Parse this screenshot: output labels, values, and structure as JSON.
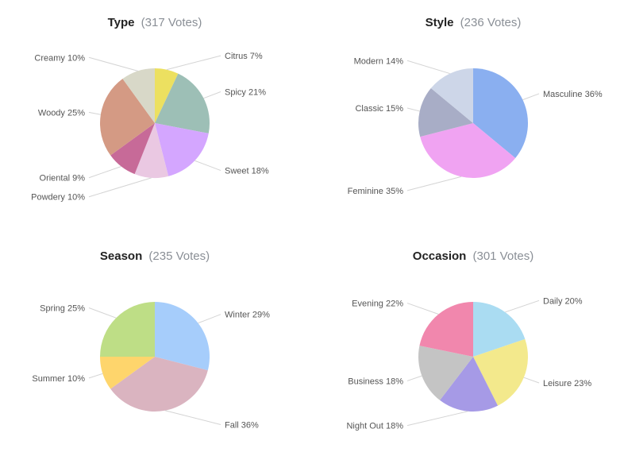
{
  "chart_data": [
    {
      "type": "pie",
      "title": "Type",
      "subtitle": "(317 Votes)",
      "labels": [
        "Citrus",
        "Spicy",
        "Sweet",
        "Powdery",
        "Oriental",
        "Woody",
        "Creamy"
      ],
      "values": [
        7,
        21,
        18,
        10,
        9,
        25,
        10
      ],
      "value_labels": [
        "Citrus 7%",
        "Spicy 21%",
        "Sweet 18%",
        "Powdery 10%",
        "Oriental 9%",
        "Woody 25%",
        "Creamy 10%"
      ],
      "colors": [
        "#ece060",
        "#9dbfb6",
        "#d4a6ff",
        "#eac8e2",
        "#c76a98",
        "#d49a84",
        "#d8d8c8"
      ]
    },
    {
      "type": "pie",
      "title": "Style",
      "subtitle": "(236 Votes)",
      "labels": [
        "Masculine",
        "Feminine",
        "Classic",
        "Modern"
      ],
      "values": [
        36,
        35,
        15,
        14
      ],
      "value_labels": [
        "Masculine 36%",
        "Feminine 35%",
        "Classic 15%",
        "Modern 14%"
      ],
      "colors": [
        "#8aaff0",
        "#f0a3f2",
        "#a8adc6",
        "#cdd6e8"
      ]
    },
    {
      "type": "pie",
      "title": "Season",
      "subtitle": "(235 Votes)",
      "labels": [
        "Winter",
        "Fall",
        "Summer",
        "Spring"
      ],
      "values": [
        29,
        36,
        10,
        25
      ],
      "value_labels": [
        "Winter 29%",
        "Fall 36%",
        "Summer 10%",
        "Spring 25%"
      ],
      "colors": [
        "#a6cdfb",
        "#dab4c0",
        "#fed56c",
        "#bede86"
      ]
    },
    {
      "type": "pie",
      "title": "Occasion",
      "subtitle": "(301 Votes)",
      "labels": [
        "Daily",
        "Leisure",
        "Night Out",
        "Business",
        "Evening"
      ],
      "values": [
        20,
        23,
        18,
        18,
        22
      ],
      "value_labels": [
        "Daily 20%",
        "Leisure 23%",
        "Night Out 18%",
        "Business 18%",
        "Evening 22%"
      ],
      "colors": [
        "#aadcf2",
        "#f3e98c",
        "#a69ae6",
        "#c4c4c4",
        "#f187ad"
      ]
    }
  ]
}
